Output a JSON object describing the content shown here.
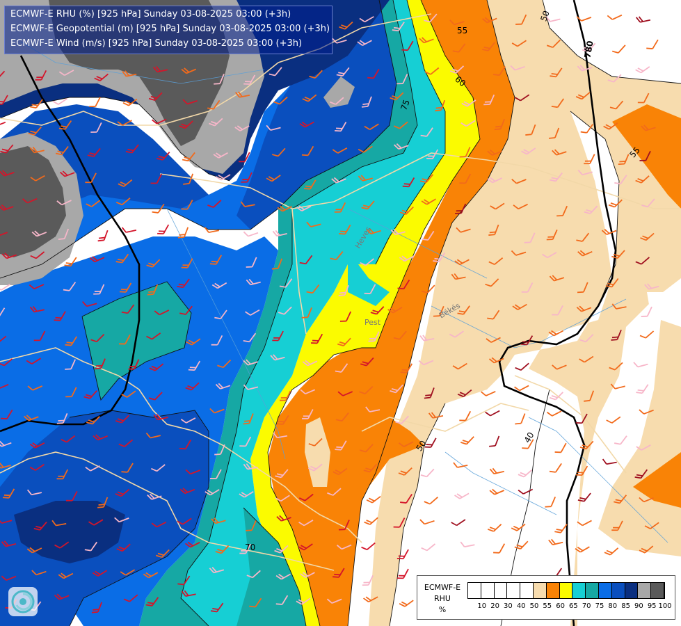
{
  "titles": {
    "line1": "ECMWF-E RHU (%) [925 hPa] Sunday 03-08-2025 03:00 (+3h)",
    "line2": "ECMWF-E Geopotential (m) [925 hPa] Sunday 03-08-2025 03:00 (+3h)",
    "line3": "ECMWF-E Wind (m/s) [925 hPa] Sunday 03-08-2025 03:00 (+3h)"
  },
  "legend": {
    "line1": "ECMWF-E",
    "line2": "RHU",
    "line3": "%",
    "levels": [
      "10",
      "20",
      "30",
      "40",
      "50",
      "55",
      "60",
      "65",
      "70",
      "75",
      "80",
      "85",
      "90",
      "95",
      "100"
    ],
    "colors": [
      "#ffffff",
      "#ffffff",
      "#ffffff",
      "#ffffff",
      "#ffffff",
      "#f7dcae",
      "#f98306",
      "#fbfb00",
      "#16cfd4",
      "#16a8a4",
      "#0a6de6",
      "#0a4fbe",
      "#0a2f80",
      "#a8a8a8",
      "#5a5a5a"
    ]
  },
  "contour_labels": {
    "geopotential": "780",
    "rh_55_top": "55",
    "rh_60": "60",
    "rh_75": "75",
    "rh_50_top": "50",
    "rh_55_right": "55",
    "rh_70_bottom": "70",
    "rh_50_bottom": "50",
    "rh_40": "40"
  },
  "places": {
    "pest": "Pest",
    "bekes": "Békés",
    "heves": "Heves"
  },
  "icons": {
    "logo": "ecmwf-swirl-icon",
    "barbs": "wind-barb-icon"
  }
}
